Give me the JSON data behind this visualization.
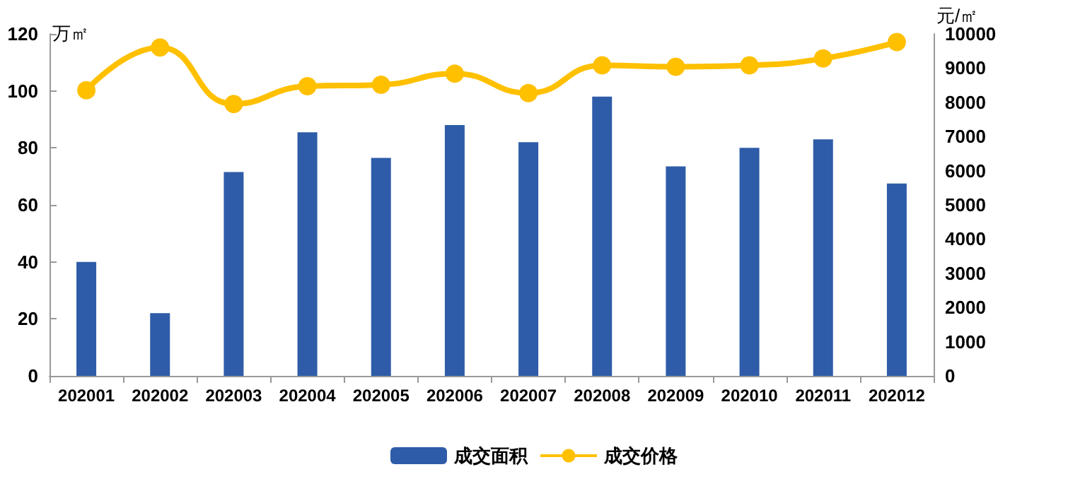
{
  "chart_data": {
    "type": "bar",
    "categories": [
      "202001",
      "202002",
      "202003",
      "202004",
      "202005",
      "202006",
      "202007",
      "202008",
      "202009",
      "202010",
      "202011",
      "202012"
    ],
    "series": [
      {
        "name": "成交面积",
        "color": "#2e5ca8",
        "values": [
          40,
          22,
          71.5,
          85.5,
          76.5,
          88,
          82,
          98,
          73.5,
          80,
          83,
          67.5
        ]
      },
      {
        "name": "成交价格",
        "type": "line",
        "axis": "y2",
        "color": "#ffc000",
        "marker": "circle",
        "values": [
          8350,
          9600,
          7950,
          8470,
          8510,
          8840,
          8270,
          9080,
          9040,
          9080,
          9280,
          9760
        ]
      }
    ],
    "ylabel": "万㎡",
    "y2label": "元/㎡",
    "ylim": [
      0,
      120
    ],
    "yticks": [
      0,
      20,
      40,
      60,
      80,
      100,
      120
    ],
    "y2lim": [
      0,
      10000
    ],
    "y2ticks": [
      0,
      1000,
      2000,
      3000,
      4000,
      5000,
      6000,
      7000,
      8000,
      9000,
      10000
    ],
    "grid": false,
    "legend": "bottom"
  }
}
